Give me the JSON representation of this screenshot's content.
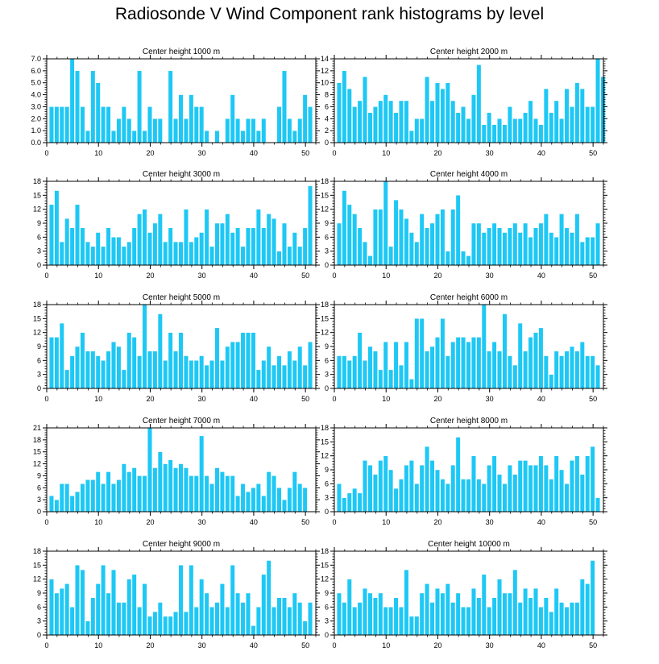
{
  "title": "Radiosonde V Wind Component rank histograms by level",
  "colors": {
    "bar": "#1ec8f5",
    "axis": "#000000",
    "bar_edge": "#ffffff"
  },
  "chart_data": [
    {
      "type": "bar",
      "title": "Center height 1000 m",
      "xlim": [
        0,
        52
      ],
      "ylim": [
        0,
        7
      ],
      "yticks": [
        0,
        1,
        2,
        3,
        4,
        5,
        6,
        7
      ],
      "ytick_format": "0.0",
      "xticks": [
        0,
        10,
        20,
        30,
        40,
        50
      ],
      "values": [
        3,
        3,
        3,
        3,
        7,
        6,
        3,
        1,
        6,
        5,
        3,
        3,
        1,
        2,
        3,
        2,
        1,
        6,
        1,
        3,
        2,
        2,
        0,
        6,
        2,
        4,
        2,
        4,
        3,
        3,
        1,
        0,
        1,
        0,
        2,
        4,
        2,
        1,
        2,
        2,
        1,
        2,
        0,
        0,
        3,
        6,
        2,
        1,
        2,
        4,
        3
      ]
    },
    {
      "type": "bar",
      "title": "Center height 2000 m",
      "xlim": [
        0,
        52
      ],
      "ylim": [
        0,
        14
      ],
      "yticks": [
        0,
        2,
        4,
        6,
        8,
        10,
        12,
        14
      ],
      "ytick_format": "0",
      "xticks": [
        0,
        10,
        20,
        30,
        40,
        50
      ],
      "values": [
        10,
        12,
        9,
        6,
        7,
        11,
        5,
        6,
        7,
        8,
        7,
        5,
        7,
        7,
        2,
        4,
        4,
        11,
        7,
        10,
        9,
        10,
        7,
        5,
        6,
        4,
        8,
        13,
        3,
        5,
        3,
        4,
        3,
        6,
        4,
        4,
        5,
        7,
        4,
        3,
        9,
        5,
        7,
        4,
        9,
        6,
        10,
        9,
        6,
        6,
        14,
        11
      ]
    },
    {
      "type": "bar",
      "title": "Center height 3000 m",
      "xlim": [
        0,
        52
      ],
      "ylim": [
        0,
        18
      ],
      "yticks": [
        0,
        3,
        6,
        9,
        12,
        15,
        18
      ],
      "ytick_format": "0",
      "xticks": [
        0,
        10,
        20,
        30,
        40,
        50
      ],
      "values": [
        13,
        16,
        5,
        10,
        8,
        13,
        8,
        5,
        4,
        7,
        4,
        8,
        6,
        6,
        4,
        5,
        8,
        11,
        12,
        7,
        9,
        11,
        5,
        8,
        5,
        5,
        12,
        5,
        6,
        7,
        12,
        4,
        9,
        9,
        11,
        7,
        8,
        4,
        8,
        8,
        12,
        8,
        11,
        10,
        3,
        9,
        4,
        7,
        4,
        8,
        17
      ]
    },
    {
      "type": "bar",
      "title": "Center height 4000 m",
      "xlim": [
        0,
        52
      ],
      "ylim": [
        0,
        18
      ],
      "yticks": [
        0,
        3,
        6,
        9,
        12,
        15,
        18
      ],
      "ytick_format": "0",
      "xticks": [
        0,
        10,
        20,
        30,
        40,
        50
      ],
      "values": [
        9,
        16,
        13,
        11,
        8,
        5,
        2,
        12,
        12,
        18,
        4,
        14,
        12,
        10,
        7,
        5,
        11,
        8,
        9,
        11,
        12,
        3,
        12,
        15,
        3,
        2,
        9,
        9,
        7,
        8,
        9,
        8,
        7,
        8,
        9,
        7,
        9,
        6,
        8,
        9,
        11,
        7,
        6,
        11,
        8,
        7,
        11,
        5,
        6,
        6,
        9
      ]
    },
    {
      "type": "bar",
      "title": "Center height 5000 m",
      "xlim": [
        0,
        52
      ],
      "ylim": [
        0,
        18
      ],
      "yticks": [
        0,
        3,
        6,
        9,
        12,
        15,
        18
      ],
      "ytick_format": "0",
      "xticks": [
        0,
        10,
        20,
        30,
        40,
        50
      ],
      "values": [
        11,
        11,
        14,
        4,
        7,
        9,
        12,
        8,
        8,
        7,
        6,
        8,
        10,
        9,
        4,
        12,
        11,
        7,
        18,
        8,
        8,
        16,
        6,
        12,
        8,
        12,
        7,
        6,
        6,
        7,
        5,
        6,
        13,
        6,
        9,
        10,
        10,
        12,
        12,
        12,
        4,
        6,
        9,
        5,
        7,
        5,
        8,
        6,
        9,
        5,
        10
      ]
    },
    {
      "type": "bar",
      "title": "Center height 6000 m",
      "xlim": [
        0,
        52
      ],
      "ylim": [
        0,
        18
      ],
      "yticks": [
        0,
        3,
        6,
        9,
        12,
        15,
        18
      ],
      "ytick_format": "0",
      "xticks": [
        0,
        10,
        20,
        30,
        40,
        50
      ],
      "values": [
        7,
        7,
        6,
        7,
        12,
        6,
        9,
        8,
        4,
        10,
        4,
        10,
        5,
        10,
        2,
        15,
        15,
        8,
        9,
        11,
        15,
        7,
        10,
        11,
        11,
        10,
        11,
        11,
        18,
        8,
        10,
        8,
        16,
        7,
        5,
        14,
        8,
        11,
        12,
        13,
        7,
        3,
        8,
        7,
        8,
        9,
        8,
        10,
        7,
        7,
        5
      ]
    },
    {
      "type": "bar",
      "title": "Center height 7000 m",
      "xlim": [
        0,
        52
      ],
      "ylim": [
        0,
        21
      ],
      "yticks": [
        0,
        3,
        6,
        9,
        12,
        15,
        18,
        21
      ],
      "ytick_format": "0",
      "xticks": [
        0,
        10,
        20,
        30,
        40,
        50
      ],
      "values": [
        4,
        3,
        7,
        7,
        4,
        5,
        7,
        8,
        8,
        10,
        7,
        10,
        7,
        8,
        12,
        10,
        11,
        9,
        9,
        21,
        11,
        15,
        12,
        13,
        11,
        12,
        11,
        9,
        9,
        19,
        9,
        7,
        11,
        10,
        9,
        9,
        4,
        7,
        5,
        6,
        7,
        4,
        10,
        9,
        6,
        3,
        6,
        10,
        7,
        6
      ]
    },
    {
      "type": "bar",
      "title": "Center height 8000 m",
      "xlim": [
        0,
        52
      ],
      "ylim": [
        0,
        18
      ],
      "yticks": [
        0,
        3,
        6,
        9,
        12,
        15,
        18
      ],
      "ytick_format": "0",
      "xticks": [
        0,
        10,
        20,
        30,
        40,
        50
      ],
      "values": [
        6,
        3,
        4,
        5,
        4,
        11,
        10,
        8,
        11,
        12,
        9,
        5,
        7,
        10,
        11,
        6,
        10,
        14,
        11,
        9,
        7,
        6,
        10,
        16,
        7,
        7,
        12,
        7,
        6,
        10,
        12,
        8,
        6,
        10,
        8,
        11,
        11,
        10,
        10,
        12,
        10,
        7,
        12,
        9,
        6,
        11,
        12,
        8,
        12,
        14,
        3
      ]
    },
    {
      "type": "bar",
      "title": "Center height 9000 m",
      "xlim": [
        0,
        52
      ],
      "ylim": [
        0,
        18
      ],
      "yticks": [
        0,
        3,
        6,
        9,
        12,
        15,
        18
      ],
      "ytick_format": "0",
      "xticks": [
        0,
        10,
        20,
        30,
        40,
        50
      ],
      "values": [
        12,
        9,
        10,
        11,
        6,
        15,
        14,
        3,
        8,
        11,
        15,
        9,
        14,
        7,
        7,
        12,
        13,
        6,
        11,
        4,
        5,
        7,
        4,
        4,
        5,
        15,
        5,
        15,
        6,
        12,
        9,
        6,
        7,
        11,
        6,
        15,
        9,
        7,
        9,
        2,
        6,
        13,
        16,
        6,
        8,
        8,
        6,
        9,
        7,
        3,
        7
      ]
    },
    {
      "type": "bar",
      "title": "Center height 10000 m",
      "xlim": [
        0,
        52
      ],
      "ylim": [
        0,
        18
      ],
      "yticks": [
        0,
        3,
        6,
        9,
        12,
        15,
        18
      ],
      "ytick_format": "0",
      "xticks": [
        0,
        10,
        20,
        30,
        40,
        50
      ],
      "values": [
        9,
        7,
        12,
        6,
        7,
        10,
        9,
        8,
        9,
        6,
        6,
        8,
        6,
        14,
        4,
        4,
        9,
        11,
        7,
        10,
        9,
        11,
        7,
        9,
        6,
        6,
        10,
        8,
        13,
        6,
        8,
        12,
        9,
        9,
        14,
        7,
        10,
        8,
        10,
        6,
        8,
        5,
        10,
        7,
        6,
        7,
        7,
        12,
        11,
        16
      ]
    }
  ]
}
